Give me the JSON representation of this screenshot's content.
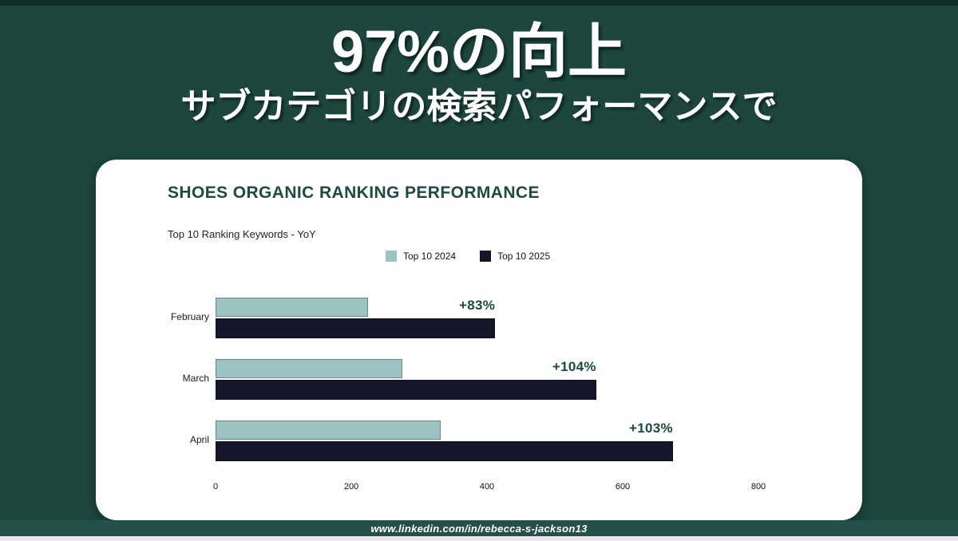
{
  "slide": {
    "title": "97%の向上",
    "subtitle": "サブカテゴリの検索パフォーマンスで"
  },
  "chart_data": {
    "type": "bar",
    "orientation": "horizontal",
    "title": "SHOES ORGANIC RANKING PERFORMANCE",
    "subtitle": "Top 10 Ranking Keywords - YoY",
    "categories": [
      "February",
      "March",
      "April"
    ],
    "series": [
      {
        "name": "Top 10 2024",
        "color": "#9cc2c3",
        "values": [
          225,
          275,
          332
        ]
      },
      {
        "name": "Top 10 2025",
        "color": "#15162a",
        "values": [
          412,
          561,
          674
        ]
      }
    ],
    "annotations": [
      {
        "category": "February",
        "label": "+83%"
      },
      {
        "category": "March",
        "label": "+104%"
      },
      {
        "category": "April",
        "label": "+103%"
      }
    ],
    "x_ticks": [
      0,
      200,
      400,
      600,
      800
    ],
    "xlim": [
      0,
      800
    ],
    "legend_position": "top-center",
    "grid": false,
    "xlabel": "",
    "ylabel": ""
  },
  "footer": {
    "link_text": "www.linkedin.com/in/rebecca-s-jackson13"
  },
  "colors": {
    "background": "#1c463e",
    "footer_bar": "#235149",
    "bottom_strip": "#e9e7ea",
    "card": "#ffffff",
    "accent_green": "#1d4a42",
    "series_2024": "#9cc2c3",
    "series_2025": "#15162a"
  }
}
